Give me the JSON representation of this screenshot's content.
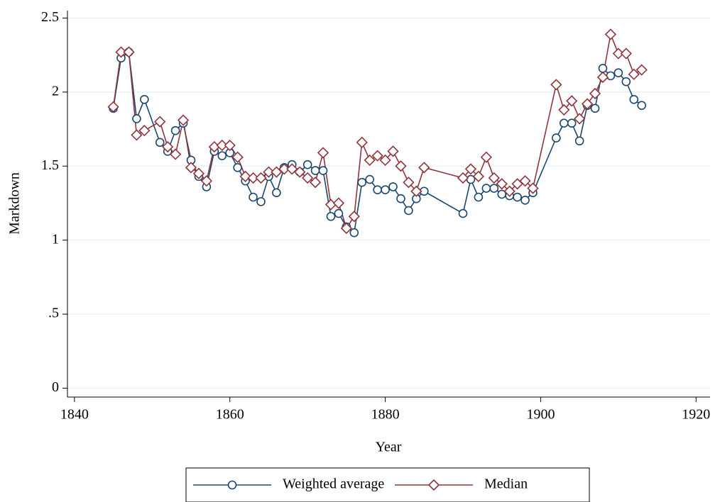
{
  "chart_data": {
    "type": "line",
    "xlabel": "Year",
    "ylabel": "Markdown",
    "x": [
      1845,
      1846,
      1847,
      1848,
      1849,
      1851,
      1852,
      1853,
      1854,
      1855,
      1856,
      1857,
      1858,
      1859,
      1860,
      1861,
      1862,
      1863,
      1864,
      1865,
      1866,
      1867,
      1868,
      1869,
      1870,
      1871,
      1872,
      1873,
      1874,
      1875,
      1876,
      1877,
      1878,
      1879,
      1880,
      1881,
      1882,
      1883,
      1884,
      1885,
      1890,
      1891,
      1892,
      1893,
      1894,
      1895,
      1896,
      1897,
      1898,
      1899,
      1902,
      1903,
      1904,
      1905,
      1906,
      1907,
      1908,
      1909,
      1910,
      1911,
      1912,
      1913
    ],
    "series": [
      {
        "name": "Weighted average",
        "color": "#1a476f",
        "marker": "circle",
        "values": [
          1.89,
          2.23,
          2.27,
          1.82,
          1.95,
          1.66,
          1.6,
          1.74,
          1.79,
          1.54,
          1.43,
          1.36,
          1.6,
          1.57,
          1.59,
          1.49,
          1.4,
          1.29,
          1.26,
          1.43,
          1.32,
          1.49,
          1.51,
          1.46,
          1.51,
          1.47,
          1.47,
          1.16,
          1.18,
          1.09,
          1.05,
          1.39,
          1.41,
          1.34,
          1.34,
          1.36,
          1.28,
          1.2,
          1.28,
          1.33,
          1.18,
          1.41,
          1.29,
          1.35,
          1.35,
          1.31,
          1.3,
          1.29,
          1.27,
          1.32,
          1.69,
          1.79,
          1.79,
          1.67,
          1.91,
          1.89,
          2.16,
          2.11,
          2.13,
          2.07,
          1.95,
          1.91
        ]
      },
      {
        "name": "Median",
        "color": "#90353b",
        "marker": "diamond",
        "values": [
          1.9,
          2.27,
          2.27,
          1.71,
          1.74,
          1.8,
          1.63,
          1.58,
          1.81,
          1.49,
          1.45,
          1.4,
          1.63,
          1.64,
          1.64,
          1.56,
          1.43,
          1.42,
          1.42,
          1.46,
          1.46,
          1.48,
          1.48,
          1.46,
          1.42,
          1.39,
          1.59,
          1.24,
          1.25,
          1.08,
          1.16,
          1.66,
          1.54,
          1.57,
          1.54,
          1.6,
          1.5,
          1.39,
          1.33,
          1.49,
          1.42,
          1.48,
          1.43,
          1.56,
          1.42,
          1.38,
          1.33,
          1.38,
          1.4,
          1.35,
          2.05,
          1.88,
          1.94,
          1.82,
          1.92,
          1.99,
          2.1,
          2.39,
          2.26,
          2.26,
          2.12,
          2.15
        ]
      }
    ],
    "xlim": [
      1839.1,
      1921.8
    ],
    "xticks": [
      1840,
      1860,
      1880,
      1900,
      1920
    ],
    "ylim": [
      -0.06,
      2.55
    ],
    "yticks": [
      0,
      {
        "value": 0.5,
        "label": ".5"
      },
      1,
      1.5,
      2,
      2.5
    ],
    "grid": true,
    "grid_color": "#eaf2f3",
    "legend": "bottom"
  }
}
